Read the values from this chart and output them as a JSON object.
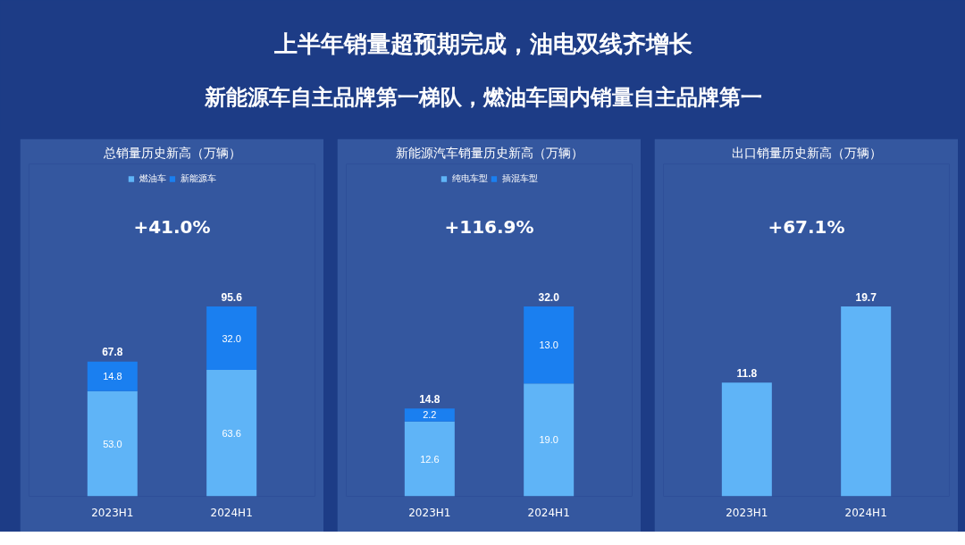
{
  "chart_data": [
    {
      "type": "other",
      "title": "上半年销量超预期完成，油电双线齐增长",
      "subtitle": "新能源车自主品牌第一梯队，燃油车国内销量自主品牌第一"
    },
    {
      "type": "bar",
      "stacked": true,
      "title": "总销量历史新高（万辆）",
      "categories": [
        "2023H1",
        "2024H1"
      ],
      "series": [
        {
          "name": "燃油车",
          "color": "#5fb4f7",
          "values": [
            53.0,
            63.6
          ],
          "value_labels": [
            "53.0",
            "63.6"
          ]
        },
        {
          "name": "新能源车",
          "color": "#1a7ff0",
          "values": [
            14.8,
            32.0
          ],
          "value_labels": [
            "14.8",
            "32.0"
          ]
        }
      ],
      "totals": [
        "67.8",
        "95.6"
      ],
      "annotations": [
        "+41.0%"
      ],
      "legend": "top",
      "grid": false,
      "tick_labels": "x"
    },
    {
      "type": "bar",
      "stacked": true,
      "title": "新能源汽车销量历史新高（万辆）",
      "categories": [
        "2023H1",
        "2024H1"
      ],
      "series": [
        {
          "name": "纯电车型",
          "color": "#5fb4f7",
          "values": [
            12.6,
            19.0
          ],
          "value_labels": [
            "12.6",
            "19.0"
          ]
        },
        {
          "name": "插混车型",
          "color": "#1a7ff0",
          "values": [
            2.2,
            13.0
          ],
          "value_labels": [
            "2.2",
            "13.0"
          ]
        }
      ],
      "totals": [
        "14.8",
        "32.0"
      ],
      "annotations": [
        "+116.9%"
      ],
      "legend": "top",
      "grid": false,
      "tick_labels": "x"
    },
    {
      "type": "bar",
      "title": "出口销量历史新高（万辆）",
      "categories": [
        "2023H1",
        "2024H1"
      ],
      "series": [
        {
          "color": "#5fb4f7",
          "values": [
            11.8,
            19.7
          ]
        }
      ],
      "data_labels": true,
      "annotations": [
        "+67.1%"
      ],
      "grid": false,
      "tick_labels": "x"
    }
  ]
}
